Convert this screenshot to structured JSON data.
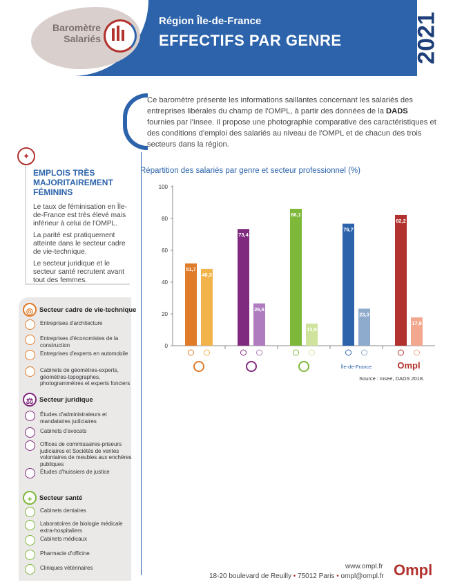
{
  "header": {
    "badge": "Baromètre Salariés",
    "region": "Région Île-de-France",
    "title": "EFFECTIFS PAR GENRE",
    "year": "2021",
    "colors": {
      "blue": "#2c63ab",
      "red": "#b1322e"
    }
  },
  "intro": {
    "part1": "Ce baromètre présente les informations saillantes concernant les salariés des entreprises libérales du champ de l'OMPL, à partir des données de la ",
    "bold": "DADS",
    "part2": " fournies par l'Insee. Il propose une photographie comparative des caractéristiques et des conditions d'emploi des salariés au niveau de l'OMPL et de chacun des trois secteurs dans la région."
  },
  "key": {
    "title": "EMPLOIS TRÈS MAJORITAIREMENT FÉMININS",
    "p1": "Le taux de féminisation en Île-de-France est très élevé mais inférieur à celui de l'OMPL.",
    "p2": "La parité est pratiquement atteinte dans le secteur cadre de vie-technique.",
    "p3": "Le secteur juridique et le secteur santé recrutent avant tout des femmes."
  },
  "chart_data": {
    "type": "bar",
    "title": "Répartition des salariés par genre et secteur professionnel (%)",
    "categories": [
      "Secteur cadre de vie-technique",
      "Secteur juridique",
      "Secteur santé",
      "Île-de-France",
      "Ompl"
    ],
    "category_labels": [
      "",
      "",
      "",
      "Île-de-France",
      "Ompl"
    ],
    "series": [
      {
        "values": [
          51.7,
          73.4,
          86.1,
          76.7,
          82.2
        ]
      },
      {
        "values": [
          48.3,
          26.6,
          13.9,
          23.3,
          17.8
        ]
      }
    ],
    "value_labels": [
      [
        "51,7",
        "73,4",
        "86,1",
        "76,7",
        "82,2"
      ],
      [
        "48,3",
        "26,6",
        "13,9",
        "23,3",
        "17,8"
      ]
    ],
    "colors": [
      [
        "#e07b2a",
        "#f2b44a"
      ],
      [
        "#7f2a7e",
        "#b07cc0"
      ],
      [
        "#7db83a",
        "#cfe39c"
      ],
      [
        "#2c63ab",
        "#8eaacc"
      ],
      [
        "#b1322e",
        "#f1a88e"
      ]
    ],
    "yticks": [
      "0",
      "20",
      "40",
      "60",
      "80",
      "100"
    ],
    "ylim": [
      0,
      100
    ],
    "grid": false,
    "source": "Source : Insee, DADS 2018."
  },
  "sidebar": {
    "groups": [
      {
        "label": "Secteur cadre de vie-technique",
        "color": "#e07b2a",
        "icon": "compass-icon",
        "items": [
          {
            "label": "Entreprises d'architecture"
          },
          {
            "label": "Entreprises d'économistes de la construction"
          },
          {
            "label": "Entreprises d'experts en automobile"
          },
          {
            "label": "Cabinets de géomètres-experts, géomètres-topographes, photogrammètres et experts fonciers"
          }
        ]
      },
      {
        "label": "Secteur juridique",
        "color": "#7f2a7e",
        "icon": "scales-icon",
        "items": [
          {
            "label": "Études d'administrateurs et mandataires judiciaires"
          },
          {
            "label": "Cabinets d'avocats"
          },
          {
            "label": "Offices de commissaires-priseurs judiciaires et Sociétés de ventes volontaires de meubles aux enchères publiques"
          },
          {
            "label": "Études d'huissiers de justice"
          }
        ]
      },
      {
        "label": "Secteur santé",
        "color": "#7db83a",
        "icon": "plus-icon",
        "items": [
          {
            "label": "Cabinets dentaires"
          },
          {
            "label": "Laboratoires de biologie médicale extra-hospitaliers"
          },
          {
            "label": "Cabinets médicaux"
          },
          {
            "label": "Pharmacie d'officine"
          },
          {
            "label": "Cliniques vétérinaires"
          }
        ]
      }
    ]
  },
  "footer": {
    "web": "www.ompl.fr",
    "address": "18-20 boulevard de Reuilly",
    "city": "75012 Paris",
    "email": "ompl@ompl.fr",
    "logo": "Ompl"
  }
}
